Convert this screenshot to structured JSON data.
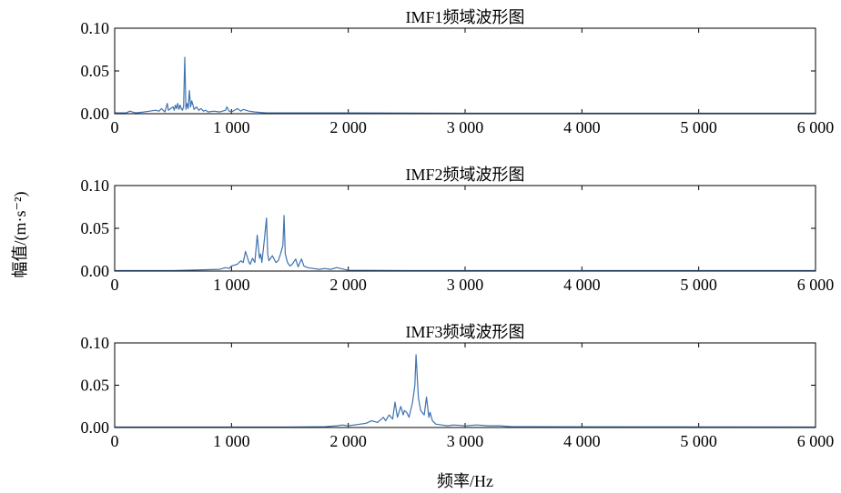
{
  "figure": {
    "ylabel": "幅值/(m·s⁻²)",
    "xlabel": "频率/Hz",
    "line_color": "#3f72af"
  },
  "chart_data": [
    {
      "type": "line",
      "title": "IMF1频域波形图",
      "xlim": [
        0,
        6000
      ],
      "ylim": [
        0,
        0.1
      ],
      "xticks": [
        0,
        1000,
        2000,
        3000,
        4000,
        5000,
        6000
      ],
      "xtick_labels": [
        "0",
        "1 000",
        "2 000",
        "3 000",
        "4 000",
        "5 000",
        "6 000"
      ],
      "yticks": [
        0,
        0.05,
        0.1
      ],
      "ytick_labels": [
        "0.00",
        "0.05",
        "0.10"
      ],
      "series": [
        {
          "x": [
            0,
            100,
            130,
            150,
            180,
            250,
            300,
            350,
            380,
            400,
            430,
            450,
            460,
            480,
            500,
            510,
            520,
            530,
            540,
            550,
            560,
            570,
            580,
            590,
            600,
            610,
            620,
            630,
            640,
            650,
            660,
            680,
            700,
            720,
            740,
            760,
            780,
            800,
            850,
            900,
            950,
            960,
            980,
            1000,
            1050,
            1080,
            1100,
            1150,
            1200,
            1300,
            1500,
            2000,
            3000,
            6000
          ],
          "y": [
            0.001,
            0.001,
            0.003,
            0.002,
            0.001,
            0.002,
            0.003,
            0.004,
            0.003,
            0.006,
            0.002,
            0.012,
            0.004,
            0.006,
            0.008,
            0.004,
            0.01,
            0.006,
            0.012,
            0.005,
            0.01,
            0.006,
            0.004,
            0.008,
            0.066,
            0.005,
            0.012,
            0.006,
            0.027,
            0.008,
            0.015,
            0.005,
            0.008,
            0.004,
            0.006,
            0.003,
            0.004,
            0.002,
            0.003,
            0.002,
            0.004,
            0.008,
            0.003,
            0.002,
            0.006,
            0.003,
            0.005,
            0.003,
            0.002,
            0.001,
            0.001,
            0.001,
            0.0005,
            0.0005
          ]
        }
      ]
    },
    {
      "type": "line",
      "title": "IMF2频域波形图",
      "xlim": [
        0,
        6000
      ],
      "ylim": [
        0,
        0.1
      ],
      "xticks": [
        0,
        1000,
        2000,
        3000,
        4000,
        5000,
        6000
      ],
      "xtick_labels": [
        "0",
        "1 000",
        "2 000",
        "3 000",
        "4 000",
        "5 000",
        "6 000"
      ],
      "yticks": [
        0,
        0.05,
        0.1
      ],
      "ytick_labels": [
        "0.00",
        "0.05",
        "0.10"
      ],
      "series": [
        {
          "x": [
            0,
            500,
            900,
            950,
            980,
            1000,
            1050,
            1080,
            1100,
            1120,
            1150,
            1160,
            1180,
            1200,
            1220,
            1240,
            1250,
            1260,
            1280,
            1300,
            1310,
            1320,
            1350,
            1380,
            1400,
            1420,
            1440,
            1450,
            1460,
            1480,
            1500,
            1520,
            1550,
            1570,
            1600,
            1620,
            1650,
            1700,
            1750,
            1800,
            1850,
            1900,
            2000,
            2500,
            6000
          ],
          "y": [
            0.0005,
            0.0005,
            0.002,
            0.004,
            0.003,
            0.006,
            0.008,
            0.012,
            0.01,
            0.023,
            0.01,
            0.008,
            0.015,
            0.01,
            0.042,
            0.015,
            0.02,
            0.01,
            0.035,
            0.062,
            0.02,
            0.012,
            0.018,
            0.01,
            0.012,
            0.02,
            0.03,
            0.065,
            0.02,
            0.01,
            0.006,
            0.008,
            0.014,
            0.005,
            0.014,
            0.006,
            0.004,
            0.003,
            0.002,
            0.003,
            0.002,
            0.004,
            0.001,
            0.0005,
            0.0005
          ]
        }
      ]
    },
    {
      "type": "line",
      "title": "IMF3频域波形图",
      "xlim": [
        0,
        6000
      ],
      "ylim": [
        0,
        0.1
      ],
      "xticks": [
        0,
        1000,
        2000,
        3000,
        4000,
        5000,
        6000
      ],
      "xtick_labels": [
        "0",
        "1 000",
        "2 000",
        "3 000",
        "4 000",
        "5 000",
        "6 000"
      ],
      "yticks": [
        0,
        0.05,
        0.1
      ],
      "ytick_labels": [
        "0.00",
        "0.05",
        "0.10"
      ],
      "series": [
        {
          "x": [
            0,
            1500,
            1800,
            1900,
            1950,
            2000,
            2100,
            2150,
            2200,
            2250,
            2300,
            2320,
            2350,
            2380,
            2400,
            2420,
            2450,
            2470,
            2480,
            2500,
            2520,
            2550,
            2570,
            2580,
            2600,
            2620,
            2650,
            2670,
            2690,
            2700,
            2720,
            2750,
            2800,
            2850,
            2900,
            3000,
            3100,
            3200,
            3300,
            3400,
            3500,
            6000
          ],
          "y": [
            0.0005,
            0.0005,
            0.001,
            0.002,
            0.003,
            0.002,
            0.004,
            0.005,
            0.008,
            0.006,
            0.012,
            0.008,
            0.015,
            0.01,
            0.03,
            0.012,
            0.025,
            0.015,
            0.02,
            0.018,
            0.012,
            0.03,
            0.05,
            0.086,
            0.035,
            0.02,
            0.015,
            0.036,
            0.012,
            0.018,
            0.008,
            0.004,
            0.003,
            0.002,
            0.003,
            0.002,
            0.003,
            0.002,
            0.002,
            0.001,
            0.001,
            0.0005
          ]
        }
      ]
    }
  ]
}
